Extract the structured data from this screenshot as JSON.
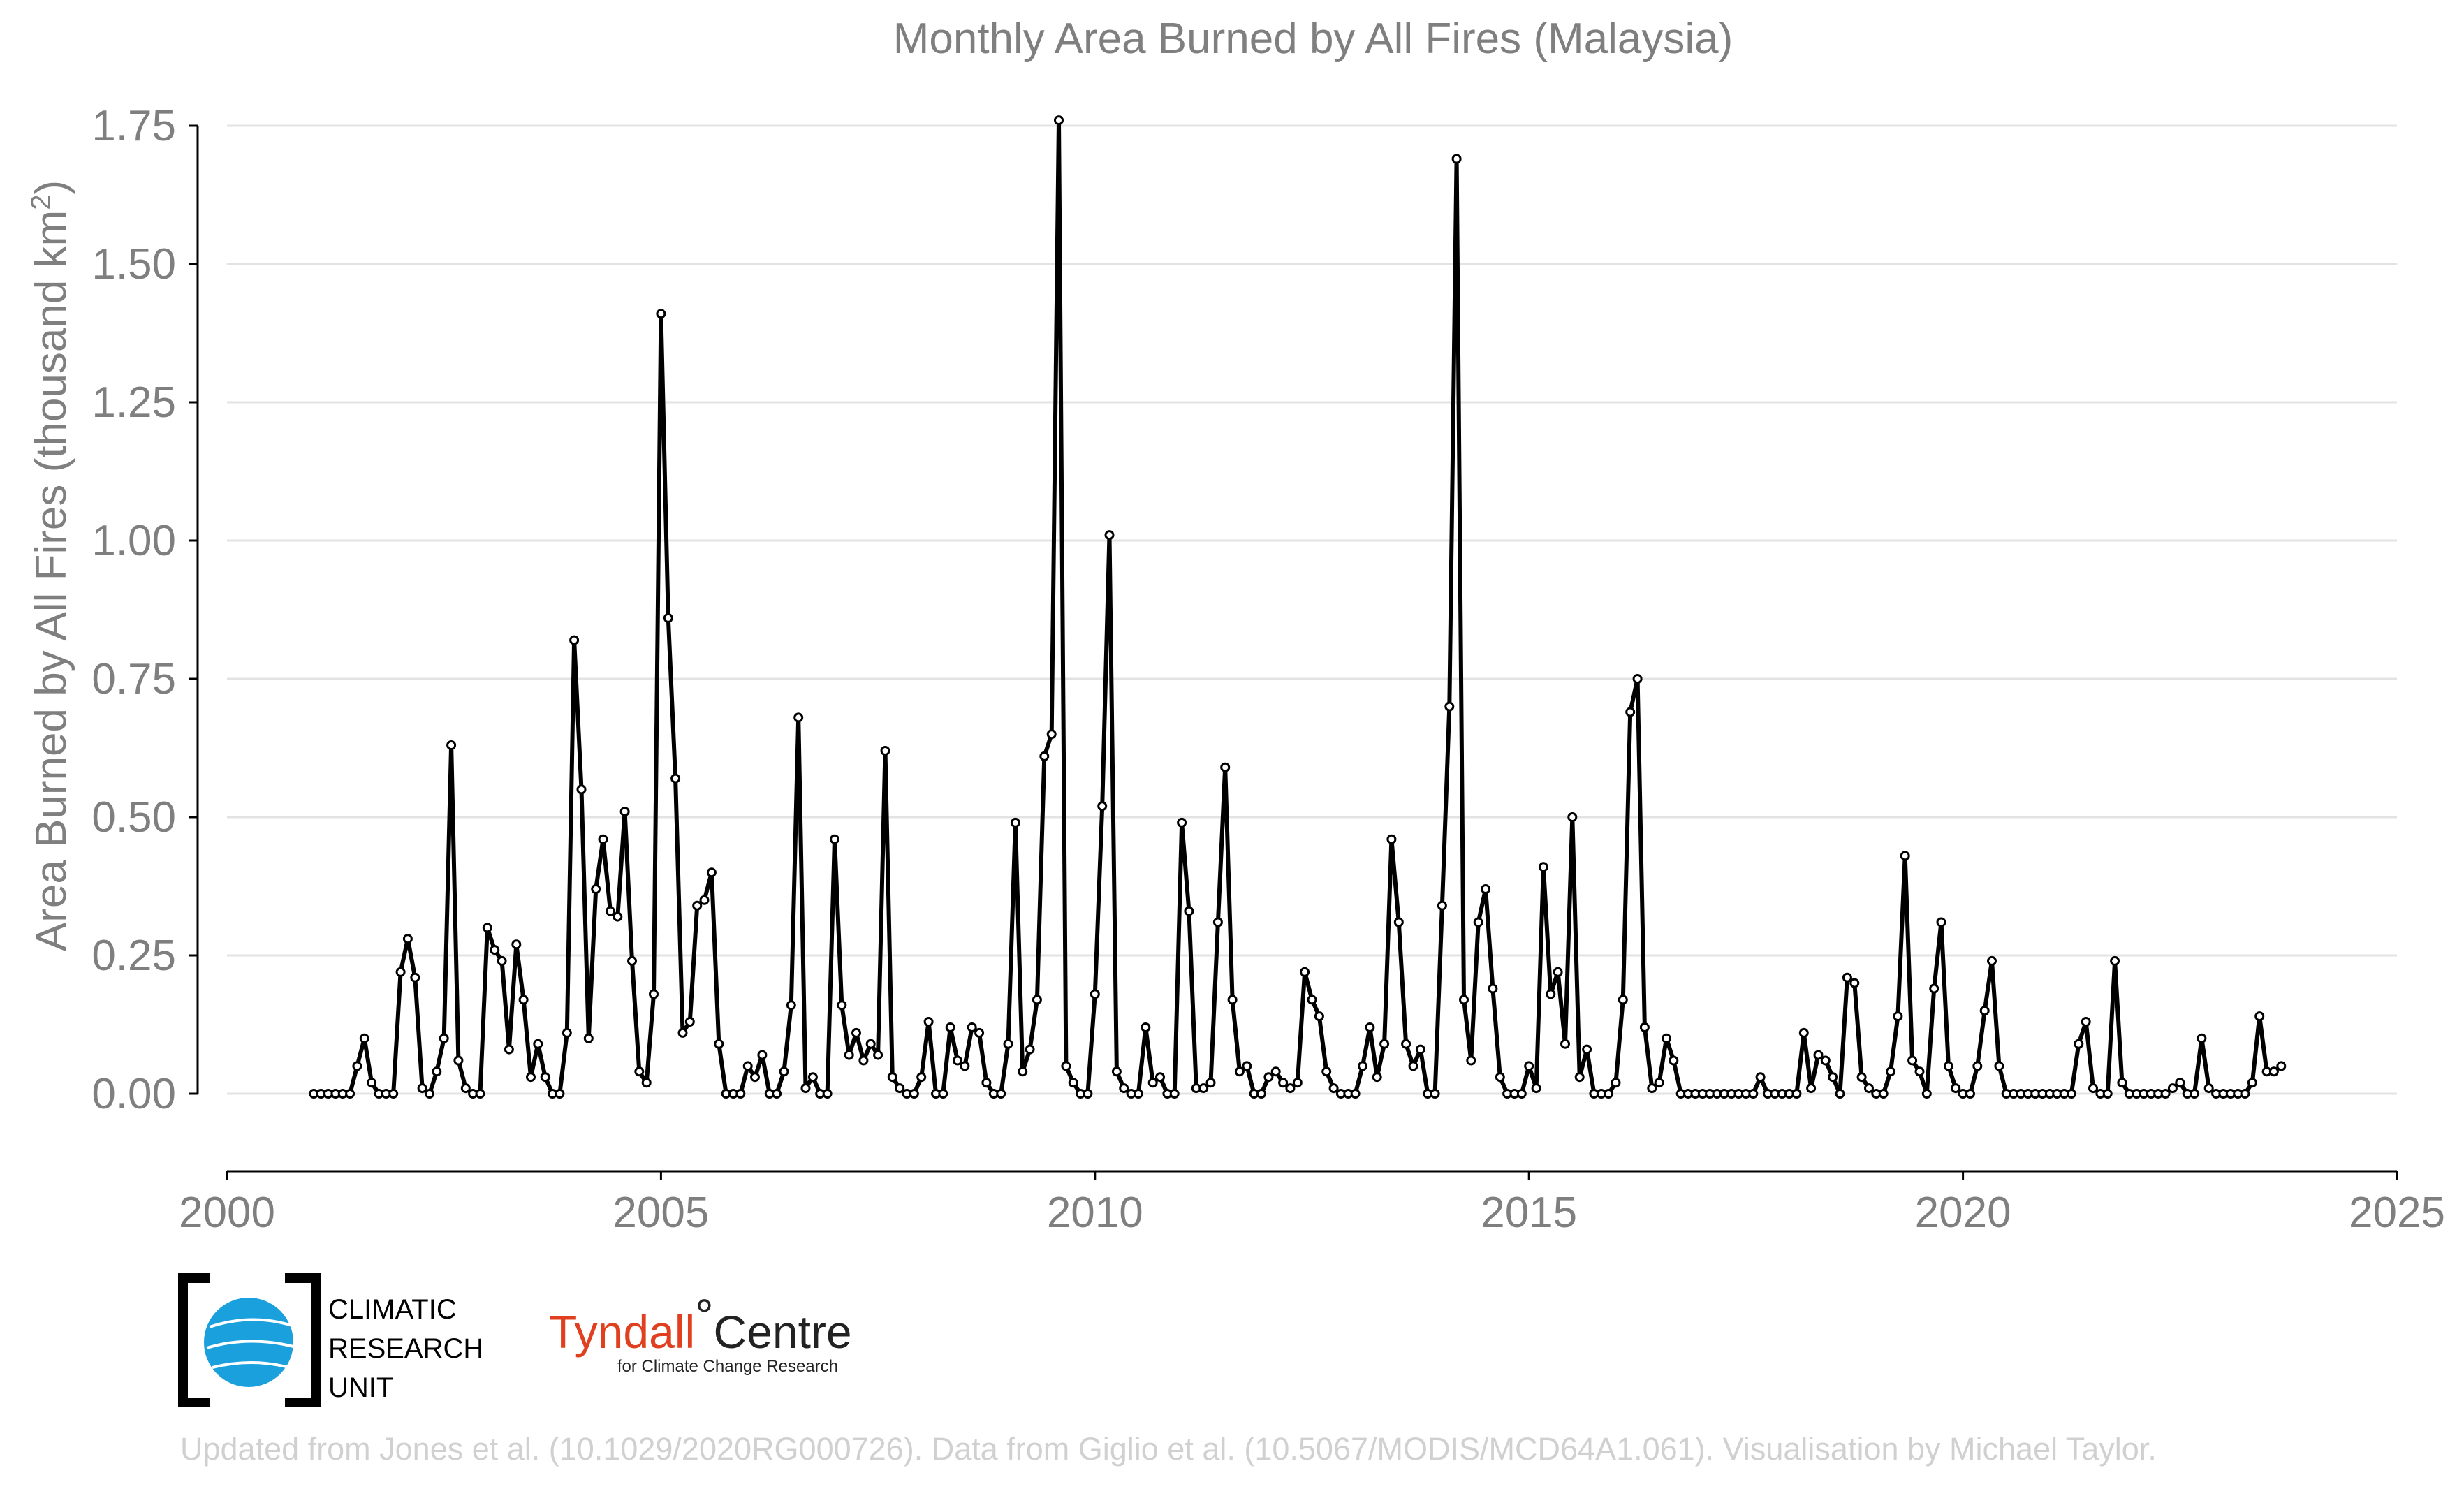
{
  "chart_data": {
    "type": "line",
    "title": "Monthly Area Burned by All Fires (Malaysia)",
    "ylabel": "Area Burned by All Fires (thousand km",
    "ylabel_sup": "2",
    "ylabel_close": ")",
    "xlabel": "",
    "xlim": [
      2000,
      2025
    ],
    "ylim": [
      -0.12,
      1.8
    ],
    "x_ticks": [
      2000,
      2005,
      2010,
      2015,
      2020,
      2025
    ],
    "x_tick_labels": [
      "2000",
      "2005",
      "2010",
      "2015",
      "2020",
      "2025"
    ],
    "y_ticks": [
      0,
      0.25,
      0.5,
      0.75,
      1.0,
      1.25,
      1.5,
      1.75
    ],
    "y_tick_labels": [
      "0.00",
      "0.25",
      "0.50",
      "0.75",
      "1.00",
      "1.25",
      "1.50",
      "1.75"
    ],
    "grid": "horizontal",
    "line_color": "#000000",
    "marker": "open-circle",
    "series": [
      {
        "start_year": 2001,
        "start_month": 1,
        "values": [
          0.0,
          0.0,
          0.0,
          0.0,
          0.0,
          0.0,
          0.05,
          0.1,
          0.02,
          0.0,
          0.0,
          0.0,
          0.22,
          0.28,
          0.21,
          0.01,
          0.0,
          0.04,
          0.1,
          0.63,
          0.06,
          0.01,
          0.0,
          0.0,
          0.3,
          0.26,
          0.24,
          0.08,
          0.27,
          0.17,
          0.03,
          0.09,
          0.03,
          0.0,
          0.0,
          0.11,
          0.82,
          0.55,
          0.1,
          0.37,
          0.46,
          0.33,
          0.32,
          0.51,
          0.24,
          0.04,
          0.02,
          0.18,
          1.41,
          0.86,
          0.57,
          0.11,
          0.13,
          0.34,
          0.35,
          0.4,
          0.09,
          0.0,
          0.0,
          0.0,
          0.05,
          0.03,
          0.07,
          0.0,
          0.0,
          0.04,
          0.16,
          0.68,
          0.01,
          0.03,
          0.0,
          0.0,
          0.46,
          0.16,
          0.07,
          0.11,
          0.06,
          0.09,
          0.07,
          0.62,
          0.03,
          0.01,
          0.0,
          0.0,
          0.03,
          0.13,
          0.0,
          0.0,
          0.12,
          0.06,
          0.05,
          0.12,
          0.11,
          0.02,
          0.0,
          0.0,
          0.09,
          0.49,
          0.04,
          0.08,
          0.17,
          0.61,
          0.65,
          1.76,
          0.05,
          0.02,
          0.0,
          0.0,
          0.18,
          0.52,
          1.01,
          0.04,
          0.01,
          0.0,
          0.0,
          0.12,
          0.02,
          0.03,
          0.0,
          0.0,
          0.49,
          0.33,
          0.01,
          0.01,
          0.02,
          0.31,
          0.59,
          0.17,
          0.04,
          0.05,
          0.0,
          0.0,
          0.03,
          0.04,
          0.02,
          0.01,
          0.02,
          0.22,
          0.17,
          0.14,
          0.04,
          0.01,
          0.0,
          0.0,
          0.0,
          0.05,
          0.12,
          0.03,
          0.09,
          0.46,
          0.31,
          0.09,
          0.05,
          0.08,
          0.0,
          0.0,
          0.34,
          0.7,
          1.69,
          0.17,
          0.06,
          0.31,
          0.37,
          0.19,
          0.03,
          0.0,
          0.0,
          0.0,
          0.05,
          0.01,
          0.41,
          0.18,
          0.22,
          0.09,
          0.5,
          0.03,
          0.08,
          0.0,
          0.0,
          0.0,
          0.02,
          0.17,
          0.69,
          0.75,
          0.12,
          0.01,
          0.02,
          0.1,
          0.06,
          0.0,
          0.0,
          0.0,
          0.0,
          0.0,
          0.0,
          0.0,
          0.0,
          0.0,
          0.0,
          0.0,
          0.03,
          0.0,
          0.0,
          0.0,
          0.0,
          0.0,
          0.11,
          0.01,
          0.07,
          0.06,
          0.03,
          0.0,
          0.21,
          0.2,
          0.03,
          0.01,
          0.0,
          0.0,
          0.04,
          0.14,
          0.43,
          0.06,
          0.04,
          0.0,
          0.19,
          0.31,
          0.05,
          0.01,
          0.0,
          0.0,
          0.05,
          0.15,
          0.24,
          0.05,
          0.0,
          0.0,
          0.0,
          0.0,
          0.0,
          0.0,
          0.0,
          0.0,
          0.0,
          0.0,
          0.09,
          0.13,
          0.01,
          0.0,
          0.0,
          0.24,
          0.02,
          0.0,
          0.0,
          0.0,
          0.0,
          0.0,
          0.0,
          0.01,
          0.02,
          0.0,
          0.0,
          0.1,
          0.01,
          0.0,
          0.0,
          0.0,
          0.0,
          0.0,
          0.02,
          0.14,
          0.04,
          0.04,
          0.05
        ]
      }
    ]
  },
  "logos": {
    "cru_line1": "CLIMATIC",
    "cru_line2": "RESEARCH",
    "cru_line3": "UNIT",
    "tyndall_name": "Tyndall",
    "tyndall_degree": "°",
    "tyndall_centre": "Centre",
    "tyndall_sub": "for Climate Change Research",
    "cru_globe_color": "#1aa0dc"
  },
  "credit": "Updated from Jones et al. (10.1029/2020RG000726). Data from Giglio et al. (10.5067/MODIS/MCD64A1.061). Visualisation by Michael Taylor."
}
